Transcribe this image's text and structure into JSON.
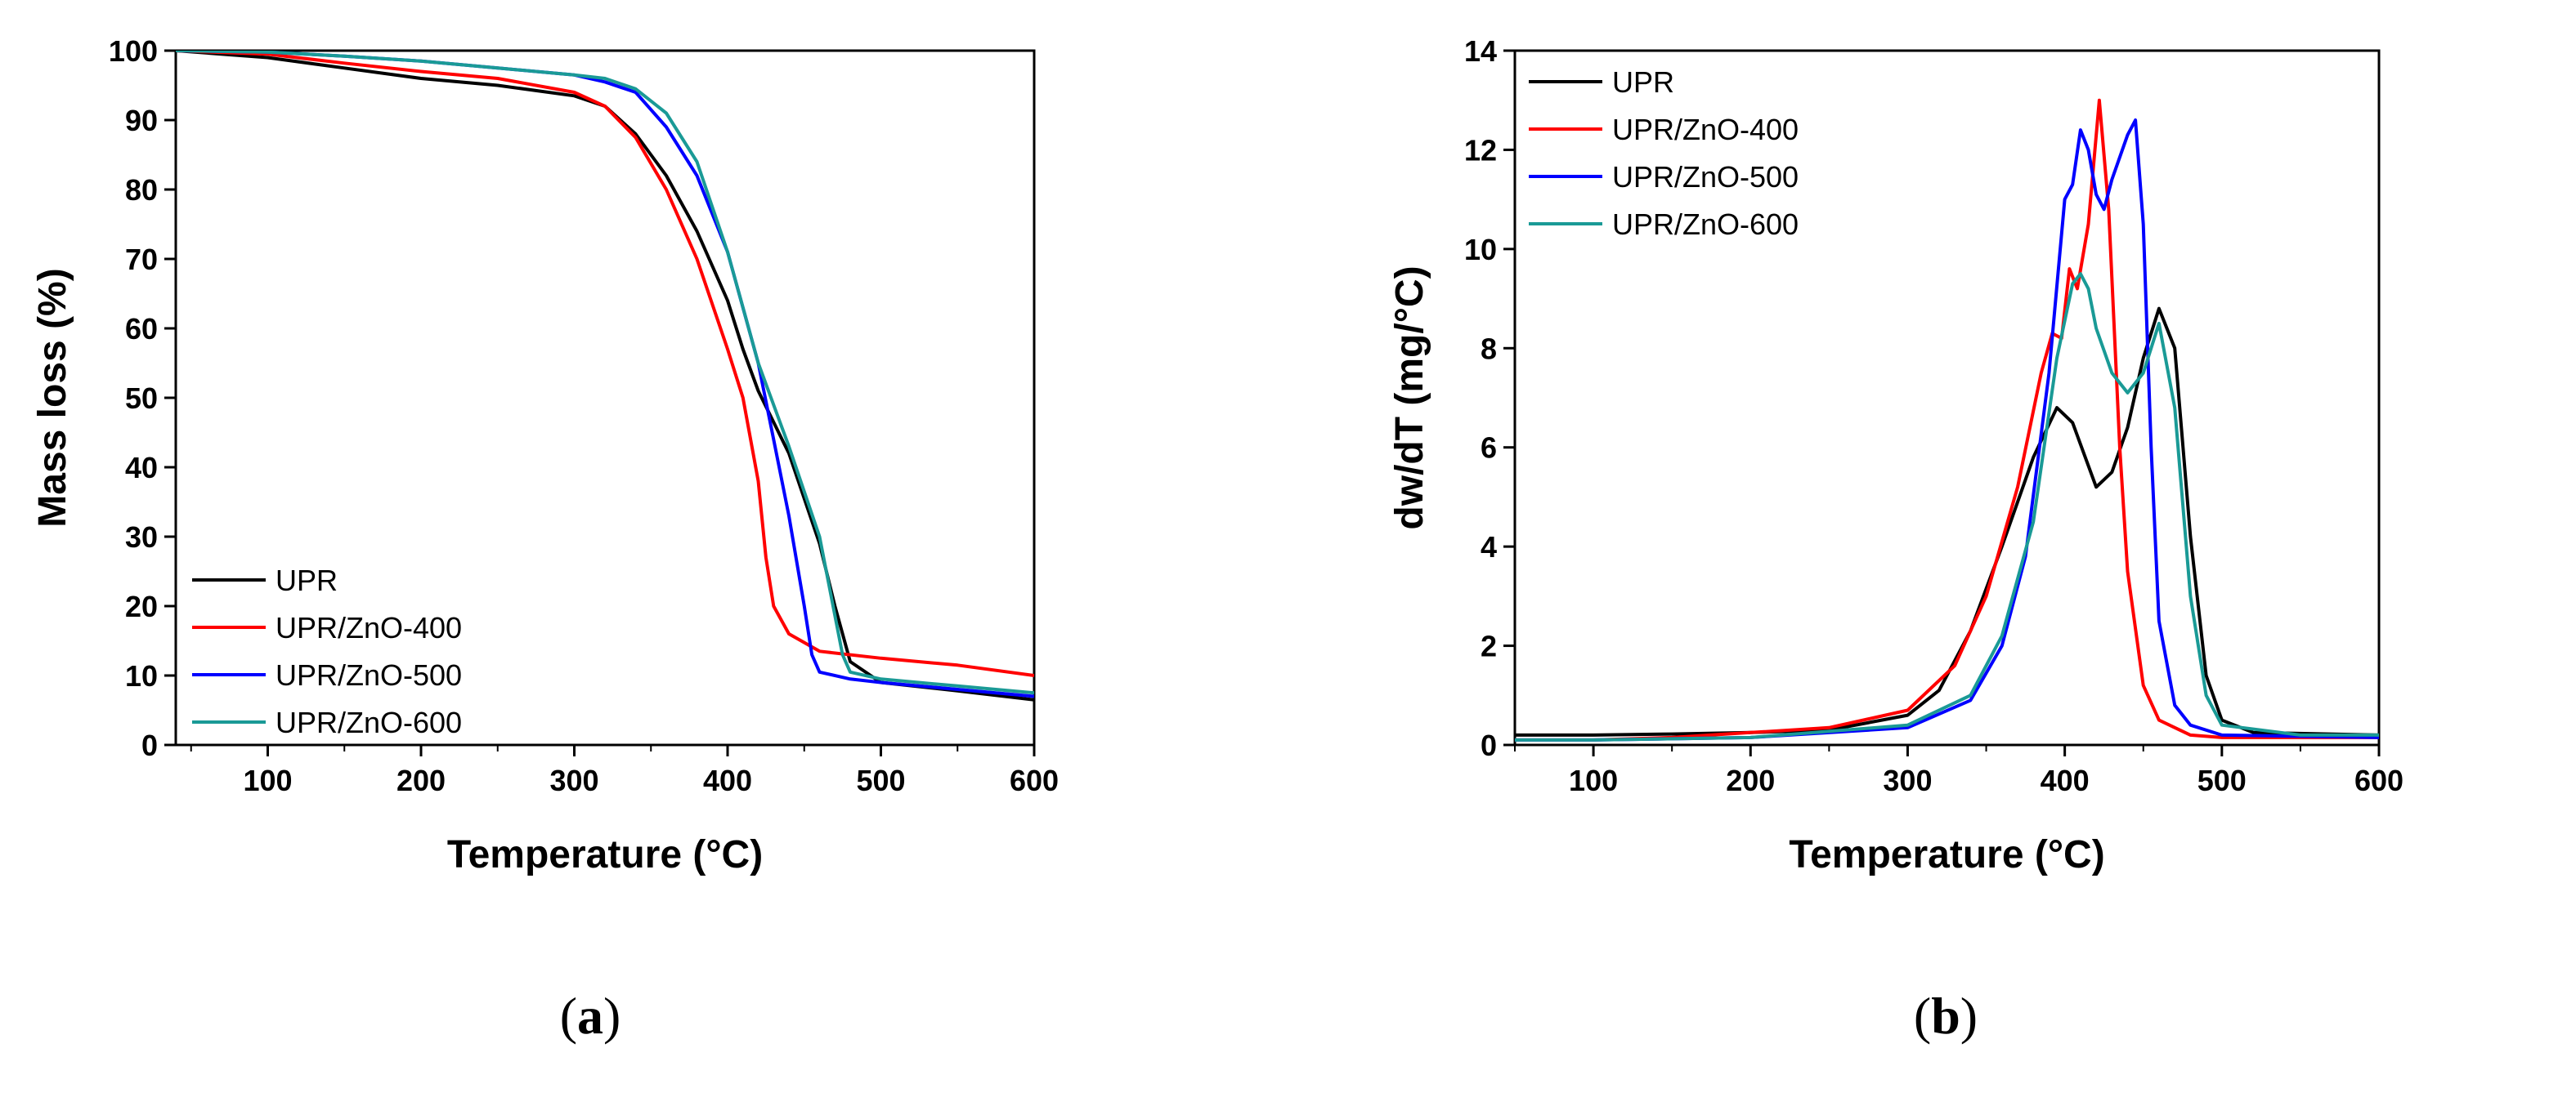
{
  "chart_data": [
    {
      "type": "line",
      "panel": "a",
      "panel_label": "a",
      "title": "",
      "xlabel": "Temperature (°C)",
      "ylabel": "Mass loss (%)",
      "xlim": [
        40,
        600
      ],
      "ylim": [
        0,
        100
      ],
      "xticks": [
        100,
        200,
        300,
        400,
        500,
        600
      ],
      "yticks": [
        0,
        10,
        20,
        30,
        40,
        50,
        60,
        70,
        80,
        90,
        100
      ],
      "legend_position": "bottom-left",
      "series": [
        {
          "name": "UPR",
          "color": "#000000",
          "x": [
            40,
            100,
            150,
            200,
            250,
            300,
            320,
            340,
            360,
            380,
            400,
            410,
            420,
            440,
            460,
            470,
            480,
            500,
            550,
            600
          ],
          "y": [
            100,
            99,
            97.5,
            96,
            95,
            93.5,
            92,
            88,
            82,
            74,
            64,
            57,
            51,
            42,
            29,
            20,
            12,
            9,
            7.8,
            6.5
          ]
        },
        {
          "name": "UPR/ZnO-400",
          "color": "#ff0000",
          "x": [
            40,
            100,
            150,
            200,
            250,
            300,
            320,
            340,
            360,
            380,
            400,
            410,
            420,
            425,
            430,
            440,
            460,
            500,
            550,
            600
          ],
          "y": [
            100,
            99.5,
            98.2,
            97,
            96,
            94,
            92,
            87.5,
            80,
            70,
            57,
            50,
            38,
            27,
            20,
            16,
            13.5,
            12.5,
            11.5,
            10
          ]
        },
        {
          "name": "UPR/ZnO-500",
          "color": "#0000ff",
          "x": [
            40,
            100,
            150,
            200,
            250,
            300,
            320,
            340,
            360,
            380,
            400,
            420,
            430,
            440,
            450,
            455,
            460,
            480,
            500,
            550,
            600
          ],
          "y": [
            100,
            99.8,
            99.2,
            98.5,
            97.5,
            96.5,
            95.5,
            94,
            89,
            82,
            71,
            55,
            44,
            33,
            20,
            13,
            10.5,
            9.5,
            9,
            8,
            7
          ]
        },
        {
          "name": "UPR/ZnO-600",
          "color": "#1a9a96",
          "x": [
            40,
            100,
            150,
            200,
            250,
            300,
            320,
            340,
            360,
            380,
            400,
            410,
            420,
            440,
            460,
            475,
            480,
            500,
            550,
            600
          ],
          "y": [
            100,
            99.8,
            99.2,
            98.5,
            97.5,
            96.5,
            96,
            94.5,
            91,
            84,
            71,
            63,
            55,
            43,
            30,
            13,
            10.5,
            9.5,
            8.5,
            7.5
          ]
        }
      ]
    },
    {
      "type": "line",
      "panel": "b",
      "panel_label": "b",
      "title": "",
      "xlabel": "Temperature (°C)",
      "ylabel": "dw/dT (mg/°C)",
      "xlim": [
        50,
        600
      ],
      "ylim": [
        0,
        14
      ],
      "xticks": [
        100,
        200,
        300,
        400,
        500,
        600
      ],
      "yticks": [
        0,
        2,
        4,
        6,
        8,
        10,
        12,
        14
      ],
      "legend_position": "top-left",
      "series": [
        {
          "name": "UPR",
          "color": "#000000",
          "x": [
            50,
            100,
            150,
            200,
            250,
            300,
            320,
            340,
            360,
            380,
            395,
            405,
            420,
            430,
            440,
            450,
            460,
            470,
            480,
            490,
            500,
            520,
            600
          ],
          "y": [
            0.2,
            0.2,
            0.22,
            0.25,
            0.3,
            0.6,
            1.1,
            2.3,
            4.0,
            5.8,
            6.8,
            6.5,
            5.2,
            5.5,
            6.4,
            7.8,
            8.8,
            8.0,
            4.2,
            1.4,
            0.5,
            0.25,
            0.2
          ]
        },
        {
          "name": "UPR/ZnO-400",
          "color": "#ff0000",
          "x": [
            50,
            100,
            150,
            200,
            250,
            300,
            330,
            350,
            370,
            385,
            392,
            398,
            403,
            408,
            415,
            422,
            428,
            435,
            440,
            450,
            460,
            480,
            500,
            550,
            600
          ],
          "y": [
            0.1,
            0.1,
            0.15,
            0.25,
            0.35,
            0.7,
            1.6,
            3.0,
            5.2,
            7.5,
            8.3,
            8.2,
            9.6,
            9.2,
            10.5,
            13.0,
            10.8,
            6.0,
            3.5,
            1.2,
            0.5,
            0.2,
            0.15,
            0.15,
            0.15
          ]
        },
        {
          "name": "UPR/ZnO-500",
          "color": "#0000ff",
          "x": [
            50,
            100,
            200,
            300,
            340,
            360,
            375,
            390,
            400,
            405,
            410,
            415,
            420,
            425,
            430,
            440,
            445,
            450,
            455,
            460,
            470,
            480,
            500,
            600
          ],
          "y": [
            0.1,
            0.1,
            0.15,
            0.35,
            0.9,
            2.0,
            3.8,
            7.5,
            11.0,
            11.3,
            12.4,
            12.0,
            11.1,
            10.8,
            11.4,
            12.3,
            12.6,
            10.5,
            6.0,
            2.5,
            0.8,
            0.4,
            0.2,
            0.15
          ]
        },
        {
          "name": "UPR/ZnO-600",
          "color": "#1a9a96",
          "x": [
            50,
            100,
            200,
            300,
            340,
            360,
            380,
            395,
            405,
            410,
            415,
            420,
            430,
            440,
            450,
            460,
            470,
            480,
            490,
            500,
            550,
            600
          ],
          "y": [
            0.1,
            0.1,
            0.15,
            0.4,
            1.0,
            2.2,
            4.5,
            7.8,
            9.3,
            9.5,
            9.2,
            8.4,
            7.5,
            7.1,
            7.5,
            8.5,
            6.8,
            3.0,
            1.0,
            0.4,
            0.2,
            0.2
          ]
        }
      ]
    }
  ]
}
